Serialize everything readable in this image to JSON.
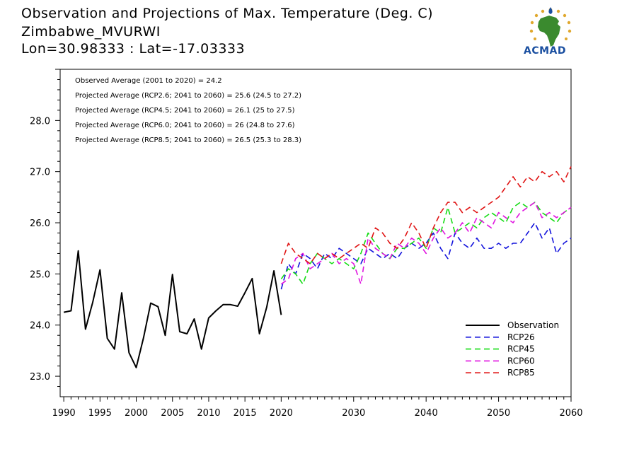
{
  "header": {
    "title_line1": "Observation and Projections of Max. Temperature (Deg. C)",
    "title_line2": "Zimbabwe_MVURWI",
    "title_line3": "Lon=30.98333 : Lat=-17.03333"
  },
  "logo": {
    "text": "ACMAD",
    "icon": "africa-map-logo-icon",
    "colors": {
      "gold": "#e0a82e",
      "green": "#3a8a2e",
      "blue": "#1a4fa0"
    }
  },
  "annotations": [
    "Observed Average (2001 to 2020) = 24.2",
    "Projected Average (RCP2.6; 2041 to 2060) = 25.6 (24.5 to 27.2)",
    "Projected Average (RCP4.5; 2041 to 2060) = 26.1 (25 to 27.5)",
    "Projected Average (RCP6.0; 2041 to 2060) = 26 (24.8 to 27.6)",
    "Projected Average (RCP8.5; 2041 to 2060) = 26.5 (25.3 to 28.3)"
  ],
  "chart_data": {
    "type": "line",
    "xlim": [
      1989.5,
      2060
    ],
    "ylim": [
      22.6,
      29.0
    ],
    "x_ticks": [
      {
        "value": 1990,
        "label": "1990"
      },
      {
        "value": 1995,
        "label": "1995"
      },
      {
        "value": 2000,
        "label": "2000"
      },
      {
        "value": 2005,
        "label": "2005"
      },
      {
        "value": 2010,
        "label": "2010"
      },
      {
        "value": 2015,
        "label": "2015"
      },
      {
        "value": 2020,
        "label": "2020"
      },
      {
        "value": 2030,
        "label": "2030"
      },
      {
        "value": 2040,
        "label": "2040"
      },
      {
        "value": 2050,
        "label": "2050"
      },
      {
        "value": 2060,
        "label": "2060"
      }
    ],
    "y_ticks": [
      {
        "value": 23.0,
        "label": "23.0"
      },
      {
        "value": 24.0,
        "label": "24.0"
      },
      {
        "value": 25.0,
        "label": "25.0"
      },
      {
        "value": 26.0,
        "label": "26.0"
      },
      {
        "value": 27.0,
        "label": "27.0"
      },
      {
        "value": 28.0,
        "label": "28.0"
      }
    ],
    "grid": false,
    "legend_position": "bottom-right",
    "series": [
      {
        "name": "Observation",
        "color": "#000000",
        "dashed": false,
        "x": [
          1990,
          1991,
          1992,
          1993,
          1994,
          1995,
          1996,
          1997,
          1998,
          1999,
          2000,
          2001,
          2002,
          2003,
          2004,
          2005,
          2006,
          2007,
          2008,
          2009,
          2010,
          2011,
          2012,
          2013,
          2014,
          2015,
          2016,
          2017,
          2018,
          2019,
          2020
        ],
        "y": [
          24.25,
          24.28,
          25.45,
          23.92,
          24.45,
          25.08,
          23.74,
          23.53,
          24.63,
          23.46,
          23.17,
          23.75,
          24.43,
          24.36,
          23.8,
          24.99,
          23.87,
          23.83,
          24.12,
          23.53,
          24.14,
          24.28,
          24.4,
          24.4,
          24.37,
          24.63,
          24.91,
          23.83,
          24.35,
          25.06,
          24.2
        ]
      },
      {
        "name": "RCP26",
        "color": "#1414dc",
        "dashed": true,
        "x": [
          2020,
          2021,
          2022,
          2023,
          2024,
          2025,
          2026,
          2027,
          2028,
          2029,
          2030,
          2031,
          2032,
          2033,
          2034,
          2035,
          2036,
          2037,
          2038,
          2039,
          2040,
          2041,
          2042,
          2043,
          2044,
          2045,
          2046,
          2047,
          2048,
          2049,
          2050,
          2051,
          2052,
          2053,
          2054,
          2055,
          2056,
          2057,
          2058,
          2059,
          2060
        ],
        "y": [
          24.7,
          25.2,
          25.0,
          25.4,
          25.3,
          25.1,
          25.4,
          25.3,
          25.5,
          25.4,
          25.3,
          25.2,
          25.5,
          25.4,
          25.3,
          25.4,
          25.3,
          25.5,
          25.6,
          25.5,
          25.6,
          25.8,
          25.5,
          25.3,
          25.8,
          25.6,
          25.5,
          25.7,
          25.5,
          25.5,
          25.6,
          25.5,
          25.6,
          25.6,
          25.8,
          26.0,
          25.7,
          25.9,
          25.4,
          25.6,
          25.7
        ]
      },
      {
        "name": "RCP45",
        "color": "#14dc14",
        "dashed": true,
        "x": [
          2020,
          2021,
          2022,
          2023,
          2024,
          2025,
          2026,
          2027,
          2028,
          2029,
          2030,
          2031,
          2032,
          2033,
          2034,
          2035,
          2036,
          2037,
          2038,
          2039,
          2040,
          2041,
          2042,
          2043,
          2044,
          2045,
          2046,
          2047,
          2048,
          2049,
          2050,
          2051,
          2052,
          2053,
          2054,
          2055,
          2056,
          2057,
          2058,
          2059,
          2060
        ],
        "y": [
          24.9,
          25.1,
          25.0,
          24.8,
          25.2,
          25.4,
          25.3,
          25.2,
          25.3,
          25.2,
          25.1,
          25.4,
          25.8,
          25.6,
          25.4,
          25.3,
          25.5,
          25.5,
          25.6,
          25.7,
          25.5,
          25.9,
          25.8,
          26.3,
          25.8,
          25.9,
          26.0,
          25.9,
          26.1,
          26.2,
          26.1,
          26.0,
          26.3,
          26.4,
          26.3,
          26.4,
          26.2,
          26.1,
          26.0,
          26.2,
          26.3
        ]
      },
      {
        "name": "RCP60",
        "color": "#e014e0",
        "dashed": true,
        "x": [
          2020,
          2021,
          2022,
          2023,
          2024,
          2025,
          2026,
          2027,
          2028,
          2029,
          2030,
          2031,
          2032,
          2033,
          2034,
          2035,
          2036,
          2037,
          2038,
          2039,
          2040,
          2041,
          2042,
          2043,
          2044,
          2045,
          2046,
          2047,
          2048,
          2049,
          2050,
          2051,
          2052,
          2053,
          2054,
          2055,
          2056,
          2057,
          2058,
          2059,
          2060
        ],
        "y": [
          24.8,
          24.9,
          25.3,
          25.4,
          25.1,
          25.2,
          25.3,
          25.4,
          25.2,
          25.3,
          25.2,
          24.8,
          25.7,
          25.5,
          25.4,
          25.3,
          25.6,
          25.5,
          25.7,
          25.6,
          25.4,
          25.7,
          25.9,
          25.7,
          25.8,
          26.0,
          25.8,
          26.1,
          26.0,
          25.9,
          26.2,
          26.1,
          26.0,
          26.2,
          26.3,
          26.4,
          26.1,
          26.2,
          26.1,
          26.2,
          26.3
        ]
      },
      {
        "name": "RCP85",
        "color": "#e01414",
        "dashed": true,
        "x": [
          2020,
          2021,
          2022,
          2023,
          2024,
          2025,
          2026,
          2027,
          2028,
          2029,
          2030,
          2031,
          2032,
          2033,
          2034,
          2035,
          2036,
          2037,
          2038,
          2039,
          2040,
          2041,
          2042,
          2043,
          2044,
          2045,
          2046,
          2047,
          2048,
          2049,
          2050,
          2051,
          2052,
          2053,
          2054,
          2055,
          2056,
          2057,
          2058,
          2059,
          2060
        ],
        "y": [
          25.2,
          25.6,
          25.4,
          25.3,
          25.2,
          25.4,
          25.3,
          25.4,
          25.3,
          25.4,
          25.5,
          25.6,
          25.5,
          25.9,
          25.8,
          25.6,
          25.5,
          25.7,
          26.0,
          25.8,
          25.5,
          25.9,
          26.2,
          26.4,
          26.4,
          26.2,
          26.3,
          26.2,
          26.3,
          26.4,
          26.5,
          26.7,
          26.9,
          26.7,
          26.9,
          26.8,
          27.0,
          26.9,
          27.0,
          26.8,
          27.1
        ]
      }
    ]
  }
}
